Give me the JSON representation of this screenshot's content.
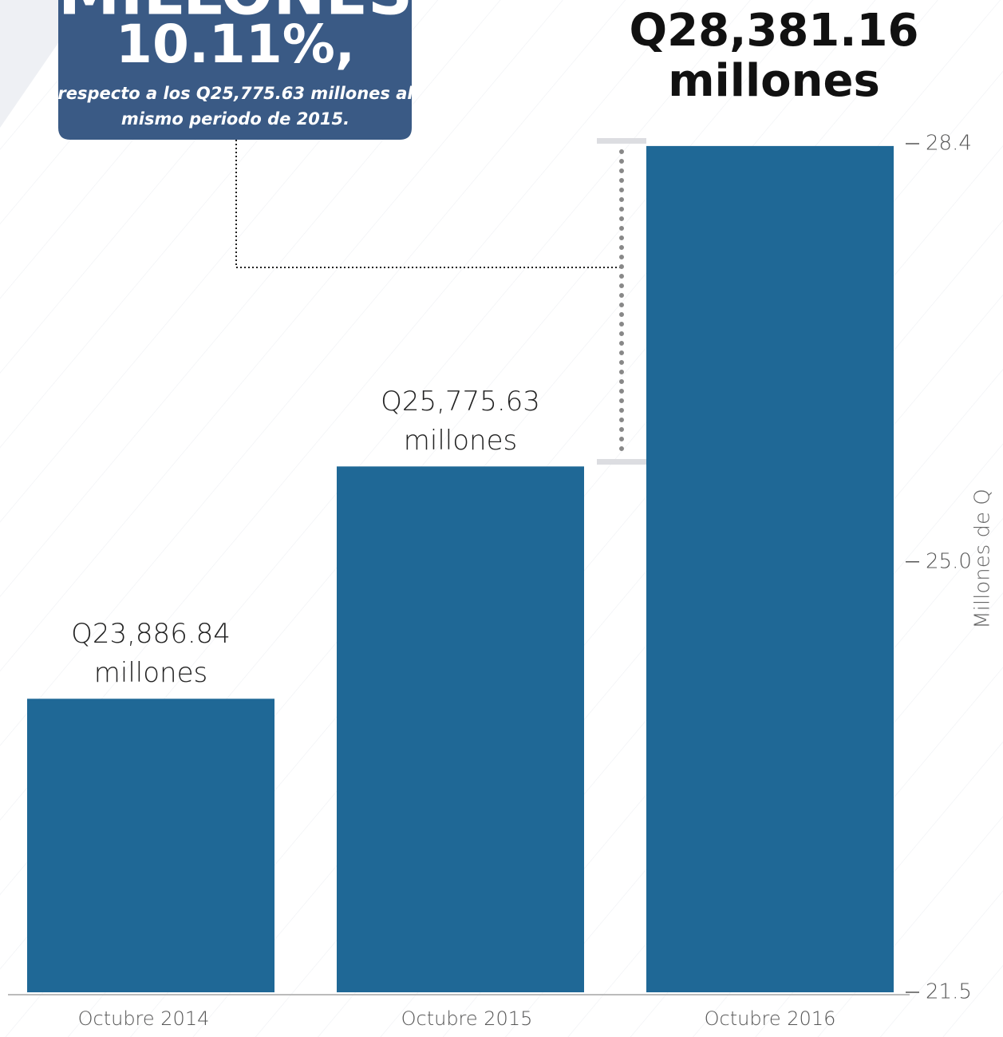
{
  "chart_data": {
    "type": "bar",
    "categories": [
      "Octubre 2014",
      "Octubre 2015",
      "Octubre 2016"
    ],
    "values": [
      23.88684,
      25.77563,
      28.38116
    ],
    "value_labels": [
      [
        "Q23,886.84",
        "millones"
      ],
      [
        "Q25,775.63",
        "millones"
      ],
      [
        "Q28,381.16",
        "millones"
      ]
    ],
    "color": "#1f6896",
    "ylim": [
      21.5,
      28.4
    ],
    "yticks": [
      28.4,
      {
        "value": 25,
        "label": "25.0"
      },
      21.5
    ],
    "y_axis_label": "Millones de Q",
    "annotation": {
      "headline": "MILLONES",
      "change": "10.11%,",
      "lines": [
        "respecto a los Q25,775.63 millones al",
        "mismo periodo de 2015."
      ]
    }
  }
}
